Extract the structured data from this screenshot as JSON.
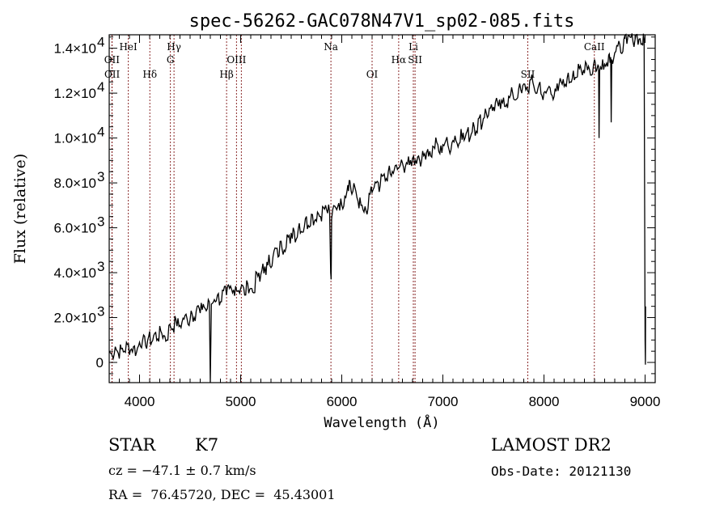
{
  "chart_data": {
    "type": "line",
    "title": "spec-56262-GAC078N47V1_sp02-085.fits",
    "xlabel": "Wavelength (Å)",
    "ylabel": "Flux (relative)",
    "xlim": [
      3700,
      9100
    ],
    "ylim": [
      -900,
      14600
    ],
    "grid": false,
    "x_ticks": [
      {
        "value": 4000,
        "label": "4000"
      },
      {
        "value": 5000,
        "label": "5000"
      },
      {
        "value": 6000,
        "label": "6000"
      },
      {
        "value": 7000,
        "label": "7000"
      },
      {
        "value": 8000,
        "label": "8000"
      },
      {
        "value": 9000,
        "label": "9000"
      }
    ],
    "y_ticks": [
      {
        "value": 0,
        "label": "0",
        "exp": ""
      },
      {
        "value": 2000,
        "label": "2.0×10",
        "exp": "3"
      },
      {
        "value": 4000,
        "label": "4.0×10",
        "exp": "3"
      },
      {
        "value": 6000,
        "label": "6.0×10",
        "exp": "3"
      },
      {
        "value": 8000,
        "label": "8.0×10",
        "exp": "3"
      },
      {
        "value": 10000,
        "label": "1.0×10",
        "exp": "4"
      },
      {
        "value": 12000,
        "label": "1.2×10",
        "exp": "4"
      },
      {
        "value": 14000,
        "label": "1.4×10",
        "exp": "4"
      }
    ],
    "series": [
      {
        "name": "spectrum",
        "color": "#000000",
        "x": [
          3700,
          3730,
          3760,
          3790,
          3820,
          3850,
          3880,
          3910,
          3940,
          3970,
          4000,
          4030,
          4060,
          4090,
          4120,
          4150,
          4180,
          4210,
          4240,
          4270,
          4300,
          4330,
          4360,
          4390,
          4420,
          4450,
          4480,
          4510,
          4540,
          4570,
          4600,
          4630,
          4660,
          4690,
          4700,
          4710,
          4740,
          4770,
          4800,
          4830,
          4860,
          4890,
          4920,
          4950,
          4980,
          5010,
          5040,
          5070,
          5100,
          5130,
          5160,
          5190,
          5220,
          5250,
          5280,
          5310,
          5340,
          5370,
          5400,
          5430,
          5460,
          5490,
          5520,
          5550,
          5580,
          5610,
          5640,
          5670,
          5700,
          5730,
          5760,
          5790,
          5820,
          5850,
          5880,
          5890,
          5895,
          5900,
          5910,
          5940,
          5970,
          6000,
          6030,
          6060,
          6080,
          6100,
          6130,
          6160,
          6190,
          6220,
          6250,
          6280,
          6310,
          6340,
          6370,
          6400,
          6430,
          6460,
          6490,
          6520,
          6550,
          6580,
          6610,
          6640,
          6670,
          6700,
          6730,
          6760,
          6790,
          6820,
          6850,
          6880,
          6910,
          6940,
          6970,
          7000,
          7030,
          7060,
          7090,
          7120,
          7150,
          7180,
          7210,
          7240,
          7270,
          7300,
          7330,
          7360,
          7390,
          7420,
          7450,
          7480,
          7510,
          7540,
          7570,
          7600,
          7630,
          7660,
          7690,
          7720,
          7750,
          7780,
          7810,
          7840,
          7870,
          7900,
          7930,
          7960,
          7990,
          8020,
          8050,
          8080,
          8110,
          8140,
          8170,
          8200,
          8230,
          8260,
          8290,
          8320,
          8350,
          8380,
          8410,
          8440,
          8470,
          8500,
          8520,
          8540,
          8545,
          8550,
          8580,
          8610,
          8640,
          8660,
          8665,
          8670,
          8700,
          8730,
          8760,
          8790,
          8820,
          8850,
          8880,
          8910,
          8940,
          8970,
          8990,
          9000,
          9003,
          9005
        ],
        "y": [
          500,
          300,
          700,
          400,
          600,
          500,
          800,
          550,
          700,
          450,
          900,
          1000,
          750,
          1150,
          900,
          1300,
          1050,
          1400,
          1200,
          1000,
          1700,
          1500,
          1900,
          1600,
          1800,
          2100,
          1700,
          2300,
          2000,
          2500,
          2200,
          2600,
          2300,
          2700,
          -900,
          2600,
          2800,
          3000,
          2700,
          3200,
          3000,
          3300,
          3100,
          3400,
          3200,
          3450,
          3000,
          3500,
          3300,
          3100,
          4000,
          3600,
          4400,
          3900,
          4800,
          4300,
          5100,
          4700,
          5400,
          5000,
          5700,
          5300,
          6000,
          5500,
          6200,
          5800,
          6400,
          6100,
          6600,
          6300,
          6700,
          6500,
          6900,
          6800,
          6700,
          4000,
          3700,
          6400,
          6800,
          6900,
          7100,
          7000,
          7400,
          7900,
          8100,
          7500,
          7800,
          7200,
          7000,
          6700,
          6600,
          7500,
          7700,
          8000,
          7600,
          8300,
          8100,
          8500,
          8300,
          8600,
          8600,
          8800,
          8700,
          8900,
          8800,
          9100,
          9000,
          9200,
          9000,
          9300,
          9500,
          9200,
          9600,
          9800,
          9300,
          9700,
          9900,
          9500,
          9800,
          10100,
          9600,
          10400,
          9900,
          10300,
          10000,
          10700,
          10300,
          10900,
          10600,
          11300,
          11000,
          11500,
          11200,
          11600,
          11300,
          11800,
          11500,
          11800,
          12000,
          11700,
          12200,
          12000,
          12400,
          12100,
          12600,
          12300,
          12000,
          12500,
          11700,
          12000,
          12300,
          11900,
          12200,
          12100,
          12500,
          12300,
          12700,
          12500,
          13000,
          12700,
          13100,
          12800,
          13400,
          13200,
          12800,
          13500,
          13000,
          13200,
          10000,
          13000,
          13500,
          13200,
          13700,
          13600,
          10700,
          13500,
          13800,
          14100,
          13800,
          14400,
          14200,
          14500,
          14300,
          14600,
          14400,
          14200,
          14400,
          1000,
          -100,
          2500
        ]
      }
    ],
    "annotations": [
      {
        "label": "OII",
        "wavelength": 3727,
        "row": 2
      },
      {
        "label": "OII",
        "wavelength": 3729,
        "row": 3
      },
      {
        "label": "HeI",
        "wavelength": 3889,
        "row": 1
      },
      {
        "label": "Hδ",
        "wavelength": 4102,
        "row": 3
      },
      {
        "label": "Hγ",
        "wavelength": 4341,
        "row": 1
      },
      {
        "label": "G",
        "wavelength": 4305,
        "row": 2
      },
      {
        "label": "Hβ",
        "wavelength": 4861,
        "row": 3
      },
      {
        "label": "OIII",
        "wavelength": 4959,
        "row": 2
      },
      {
        "label": "OIII",
        "wavelength": 5007,
        "row": 2,
        "hidden_label": true
      },
      {
        "label": "Na",
        "wavelength": 5893,
        "row": 1
      },
      {
        "label": "OI",
        "wavelength": 6300,
        "row": 3
      },
      {
        "label": "Hα",
        "wavelength": 6563,
        "row": 2
      },
      {
        "label": "Li",
        "wavelength": 6708,
        "row": 1
      },
      {
        "label": "SII",
        "wavelength": 6725,
        "row": 2
      },
      {
        "label": "SII",
        "wavelength": 7840,
        "row": 3
      },
      {
        "label": "CaII",
        "wavelength": 8498,
        "row": 1
      }
    ],
    "annotation_color": "#8b2a2a"
  },
  "info": {
    "object_class": "STAR",
    "subclass": "K7",
    "redshift": "cz = −47.1 ± 0.7 km/s",
    "coords": "RA =  76.45720, DEC =  45.43001",
    "survey": "LAMOST DR2",
    "obs_date": "Obs-Date: 20121130"
  }
}
